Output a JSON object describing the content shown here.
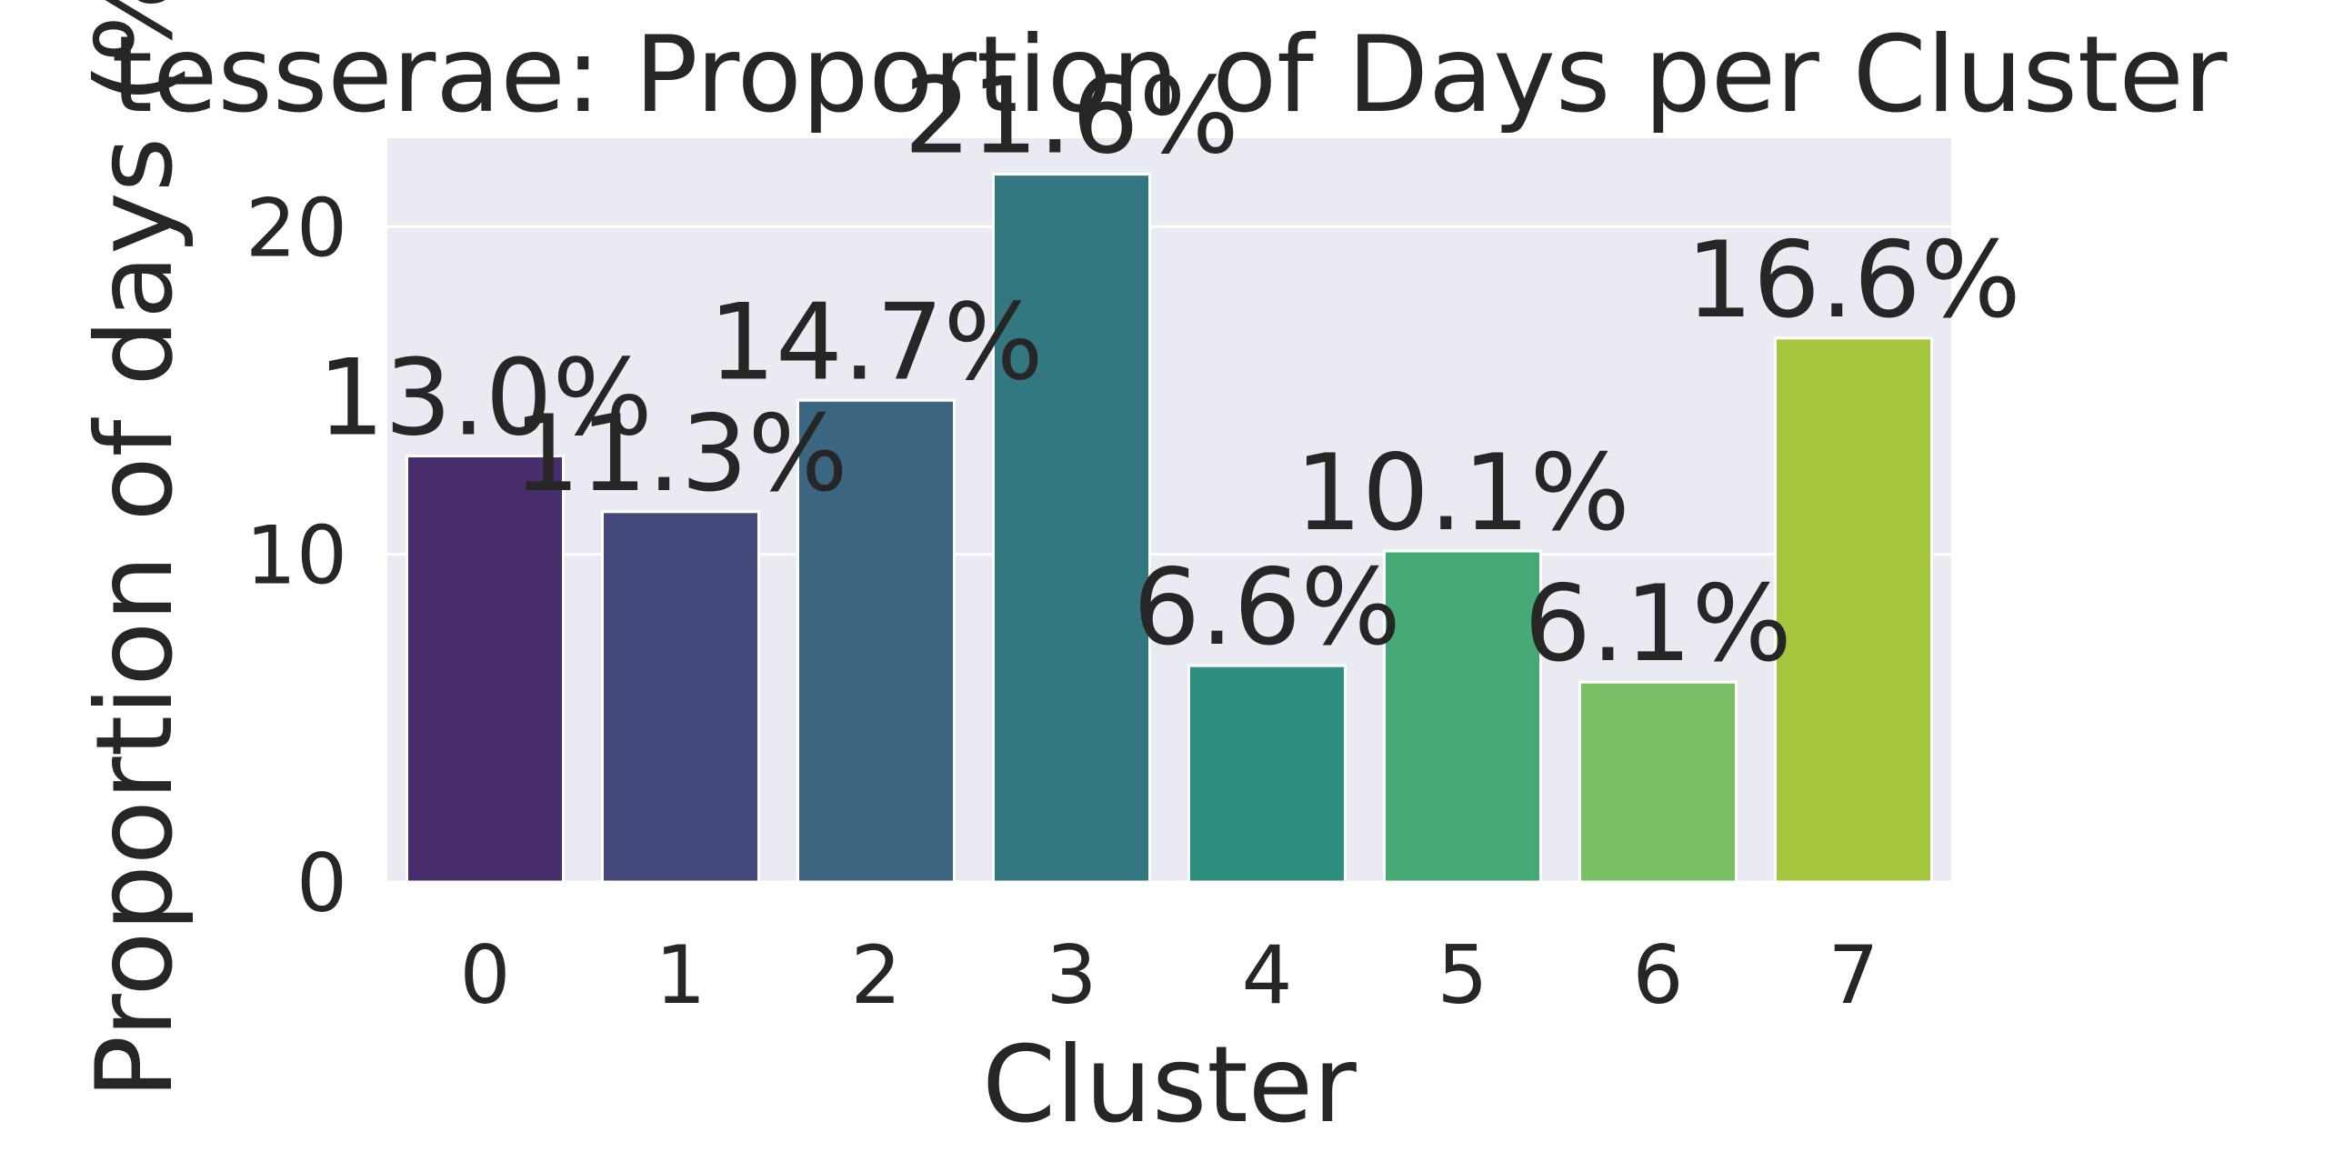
{
  "chart_data": {
    "type": "bar",
    "title": "tesserae: Proportion of Days per Cluster",
    "xlabel": "Cluster",
    "ylabel": "Proportion of days (%)",
    "categories": [
      "0",
      "1",
      "2",
      "3",
      "4",
      "5",
      "6",
      "7"
    ],
    "values": [
      13.0,
      11.3,
      14.7,
      21.6,
      6.6,
      10.1,
      6.1,
      16.6
    ],
    "data_labels": [
      "13.0%",
      "11.3%",
      "14.7%",
      "21.6%",
      "6.6%",
      "10.1%",
      "6.1%",
      "16.6%"
    ],
    "bar_colors": [
      "#482d6d",
      "#45487a",
      "#3c6581",
      "#337880",
      "#2d8f7e",
      "#47aa76",
      "#7abf66",
      "#a6c63f"
    ],
    "yticks": [
      0,
      10,
      20
    ],
    "ylim": [
      0,
      22.7
    ],
    "grid": true,
    "background_color": "#eaeaf2",
    "gridline_color": "#ffffff",
    "legend": "none"
  }
}
